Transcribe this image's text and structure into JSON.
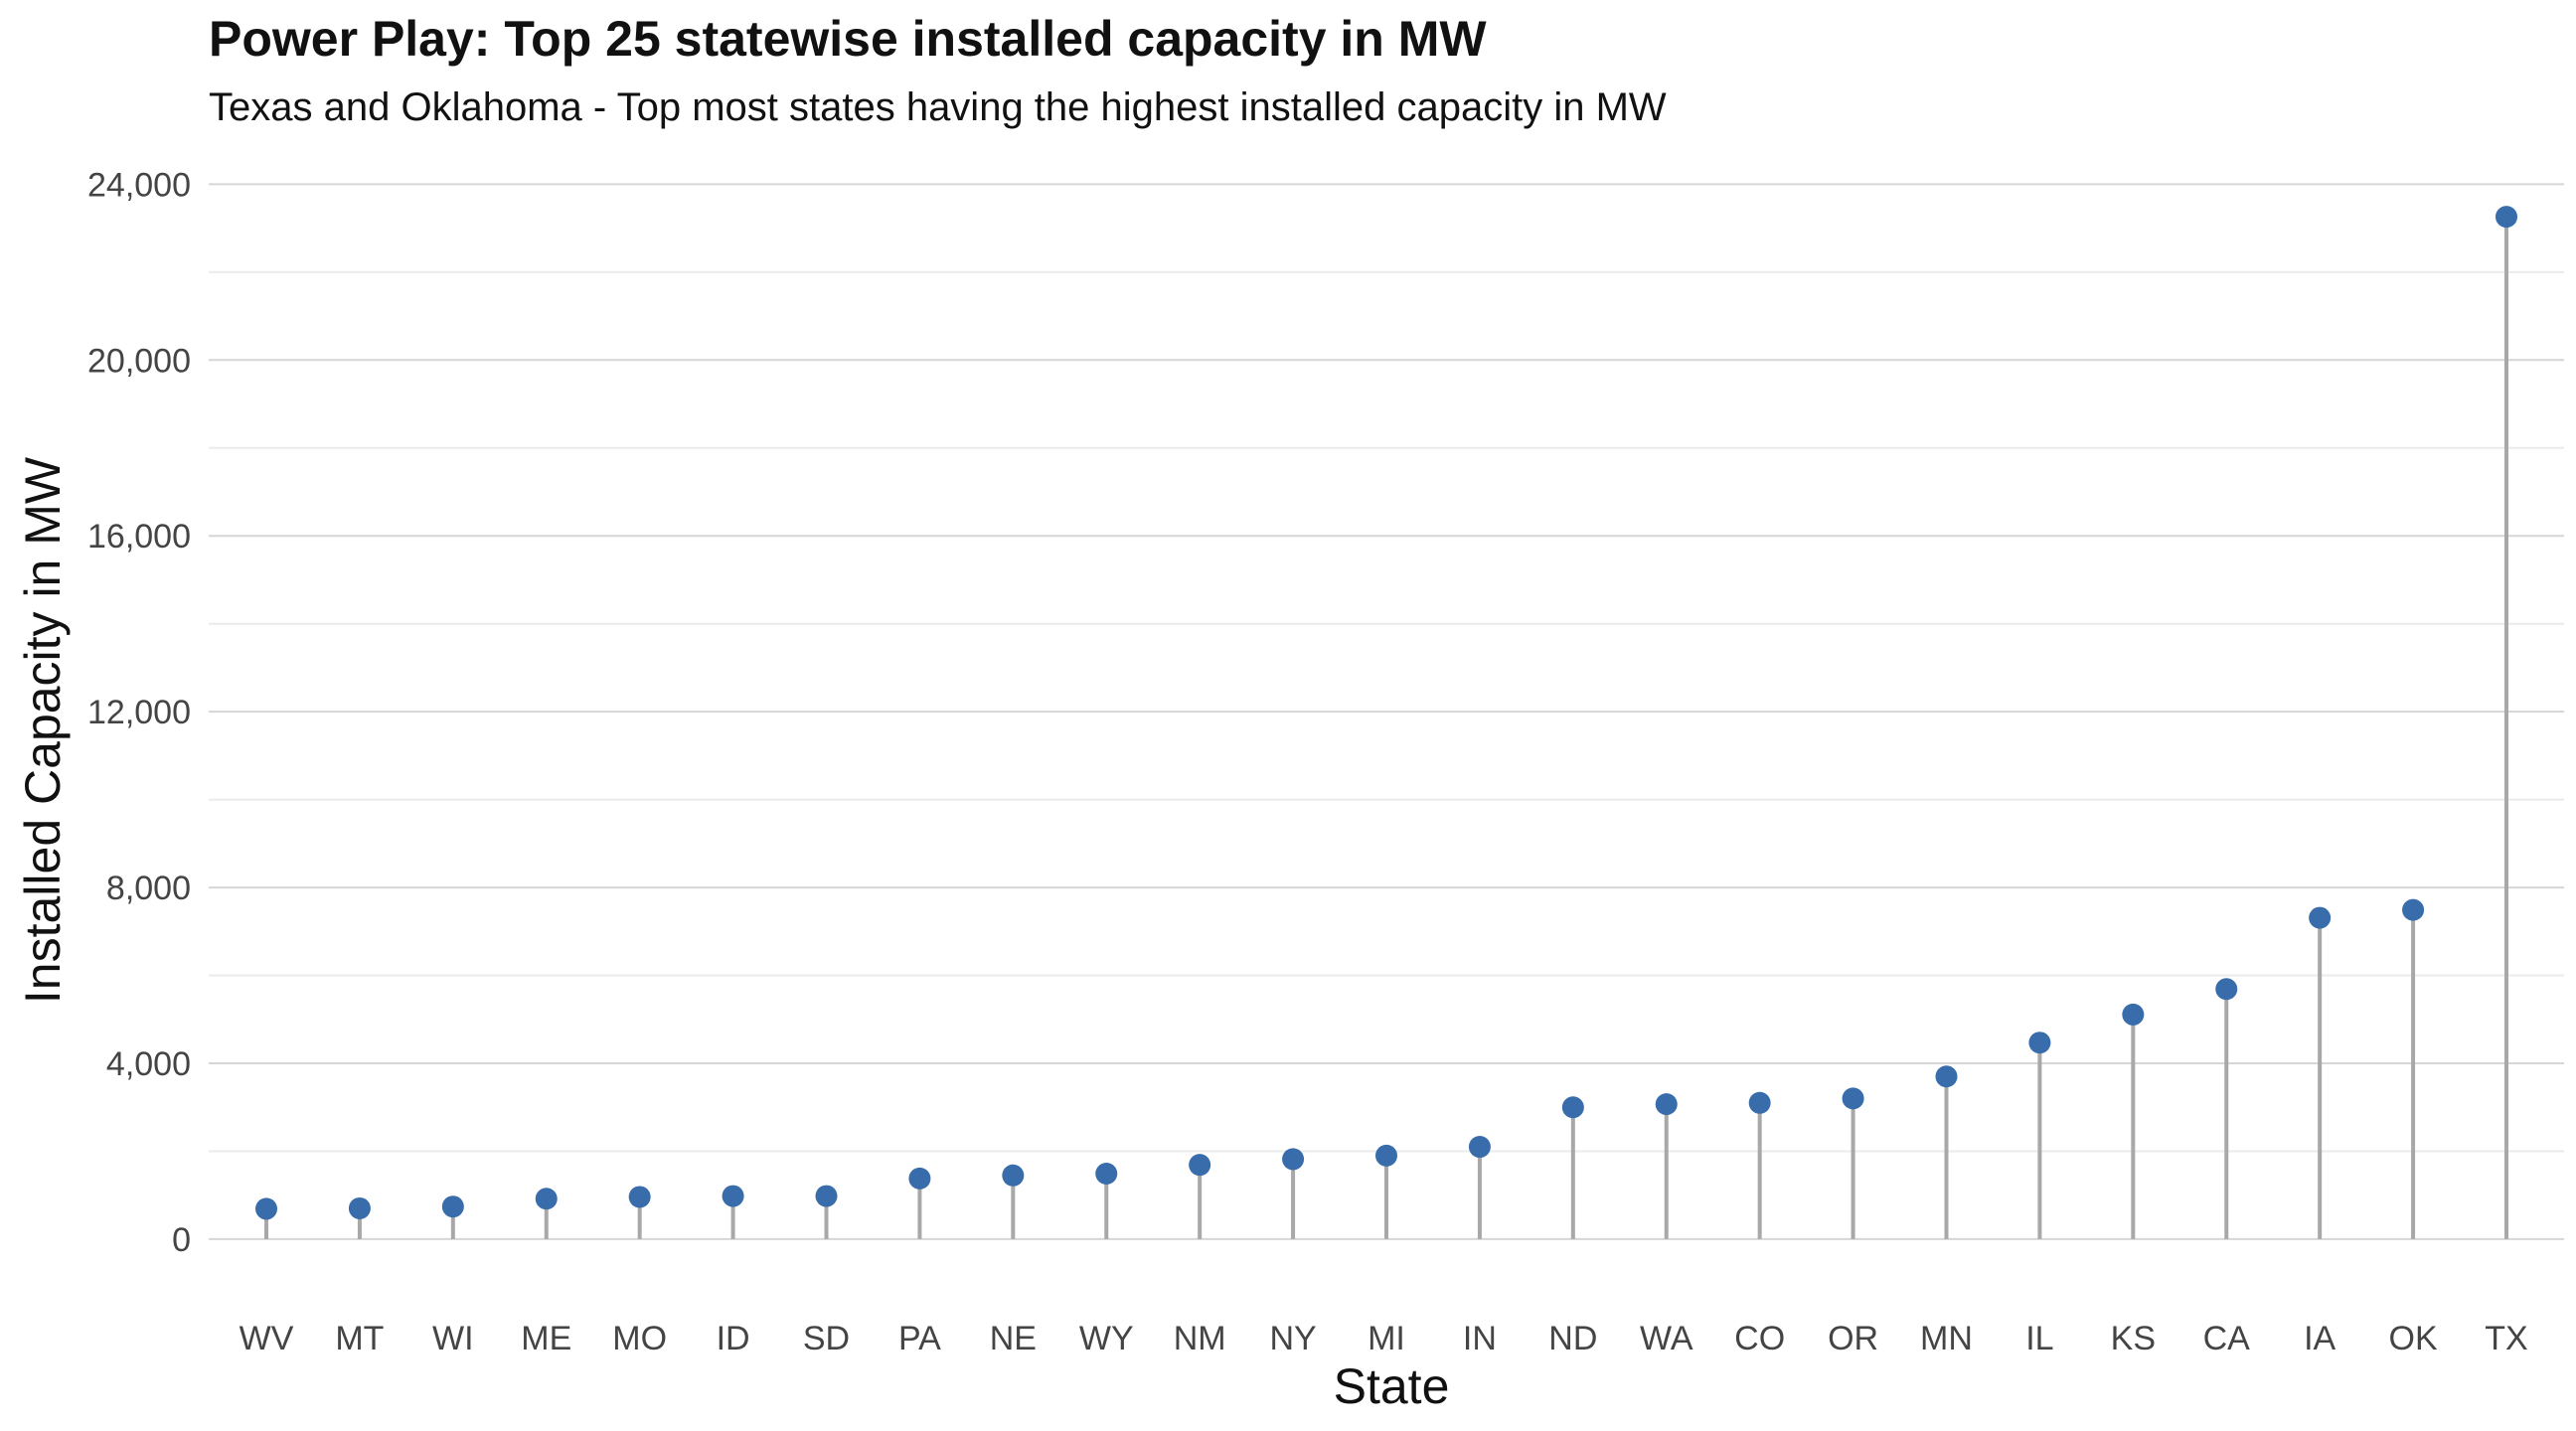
{
  "chart_data": {
    "type": "lollipop",
    "title": "Power Play: Top 25 statewise installed capacity in MW",
    "subtitle": "Texas and Oklahoma - Top most states having the highest installed capacity in MW",
    "xlabel": "State",
    "ylabel": "Installed Capacity in MW",
    "categories": [
      "WV",
      "MT",
      "WI",
      "ME",
      "MO",
      "ID",
      "SD",
      "PA",
      "NE",
      "WY",
      "NM",
      "NY",
      "MI",
      "IN",
      "ND",
      "WA",
      "CO",
      "OR",
      "MN",
      "IL",
      "KS",
      "CA",
      "IA",
      "OK",
      "TX"
    ],
    "values": [
      690,
      700,
      740,
      920,
      960,
      980,
      980,
      1380,
      1450,
      1490,
      1690,
      1820,
      1900,
      2100,
      3000,
      3070,
      3100,
      3200,
      3700,
      4470,
      5110,
      5690,
      7310,
      7490,
      23260
    ],
    "ylim": [
      -1200,
      24800
    ],
    "yticks": [
      0,
      4000,
      8000,
      12000,
      16000,
      20000,
      24000
    ],
    "ytick_labels": [
      "0",
      "4,000",
      "8,000",
      "12,000",
      "16,000",
      "20,000",
      "24,000"
    ],
    "grid": true,
    "legend": "none",
    "point_color": "#386CAA",
    "stem_color": "#A8A8A8",
    "grid_major_color": "#D6D6D6",
    "grid_minor_color": "#EBEBEB"
  }
}
